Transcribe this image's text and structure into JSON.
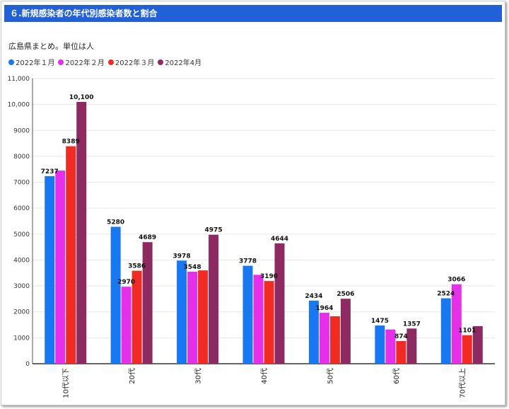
{
  "header": {
    "title": "６.新規感染者の年代別感染者数と割合"
  },
  "subtitle": "広島県まとめ。単位は人",
  "chart_data": {
    "type": "bar",
    "title": "６.新規感染者の年代別感染者数と割合",
    "subtitle": "広島県まとめ。単位は人",
    "xlabel": "",
    "ylabel": "",
    "ylim": [
      0,
      11000
    ],
    "yticks": [
      0,
      1000,
      2000,
      3000,
      4000,
      5000,
      6000,
      7000,
      8000,
      9000,
      10000,
      11000
    ],
    "ytick_labels": [
      "0",
      "1000",
      "2000",
      "3000",
      "4000",
      "5000",
      "6000",
      "7000",
      "8000",
      "9000",
      "10,000",
      "11,000"
    ],
    "categories": [
      "10代以下",
      "20代",
      "30代",
      "40代",
      "50代",
      "60代",
      "70代以上"
    ],
    "legend_position": "top-left",
    "series": [
      {
        "name": "2022年１月",
        "color": "#1778f2",
        "values": [
          7237,
          5280,
          3978,
          3778,
          2434,
          1475,
          2524
        ],
        "labels": [
          "7237",
          "5280",
          "3978",
          "3778",
          "2434",
          "1475",
          "2524"
        ]
      },
      {
        "name": "2022年２月",
        "color": "#e62fe8",
        "values": [
          7450,
          2970,
          3548,
          3430,
          1964,
          1320,
          3066
        ],
        "labels": [
          "",
          "2970",
          "3548",
          "",
          "1964",
          "",
          "3066"
        ]
      },
      {
        "name": "2022年３月",
        "color": "#f22a24",
        "values": [
          8389,
          3586,
          3600,
          3190,
          1830,
          874,
          1101
        ],
        "labels": [
          "8389",
          "3586",
          "",
          "3190",
          "",
          "874",
          "1101"
        ]
      },
      {
        "name": "2022年4月",
        "color": "#8e2a62",
        "values": [
          10100,
          4689,
          4975,
          4644,
          2506,
          1357,
          1450
        ],
        "labels": [
          "10,100",
          "4689",
          "4975",
          "4644",
          "2506",
          "1357",
          ""
        ]
      }
    ]
  }
}
